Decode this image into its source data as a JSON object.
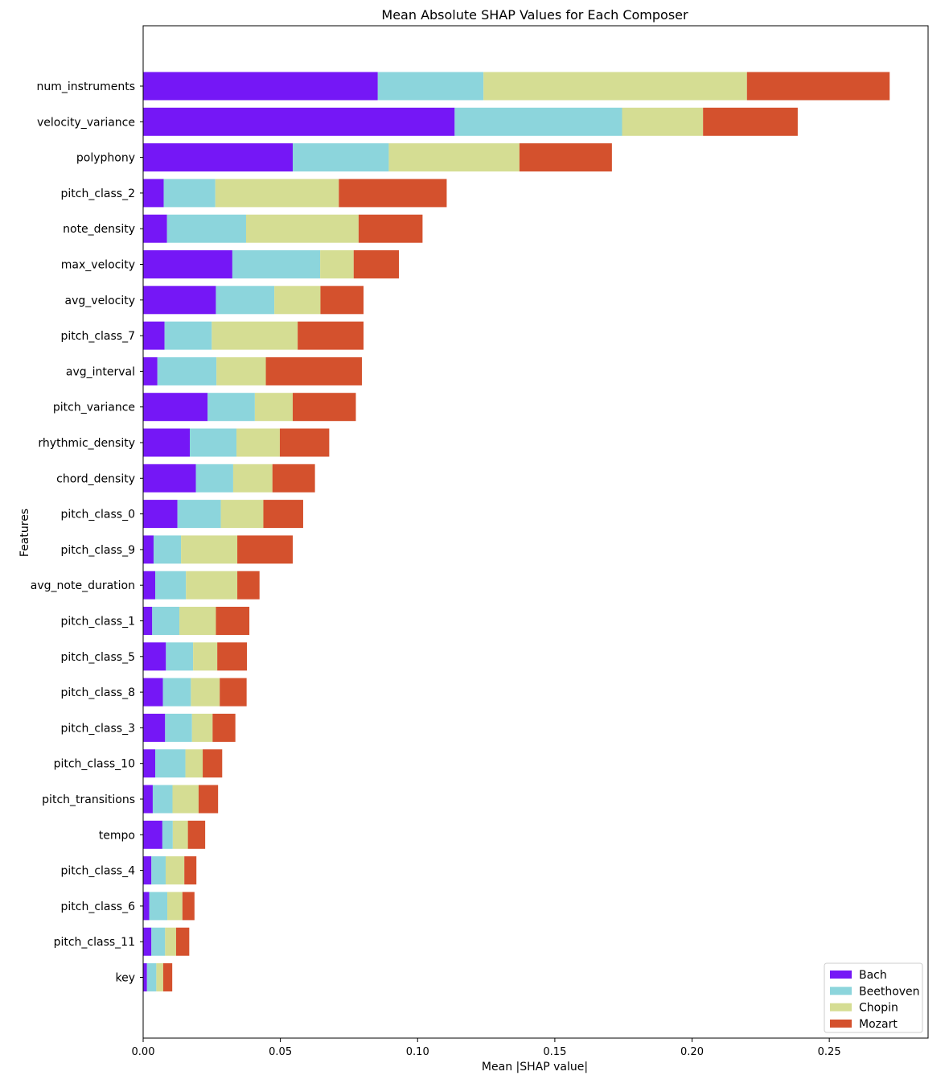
{
  "chart_data": {
    "type": "bar",
    "orientation": "horizontal",
    "stacked": true,
    "title": "Mean Absolute SHAP Values for Each Composer",
    "xlabel": "Mean |SHAP value|",
    "ylabel": "Features",
    "xlim": [
      0,
      0.286
    ],
    "xticks": [
      0.0,
      0.05,
      0.1,
      0.15,
      0.2,
      0.25
    ],
    "xtick_labels": [
      "0.00",
      "0.05",
      "0.10",
      "0.15",
      "0.20",
      "0.25"
    ],
    "grid": false,
    "legend_position": "bottom-right",
    "categories": [
      "num_instruments",
      "velocity_variance",
      "polyphony",
      "pitch_class_2",
      "note_density",
      "max_velocity",
      "avg_velocity",
      "pitch_class_7",
      "avg_interval",
      "pitch_variance",
      "rhythmic_density",
      "chord_density",
      "pitch_class_0",
      "pitch_class_9",
      "avg_note_duration",
      "pitch_class_1",
      "pitch_class_5",
      "pitch_class_8",
      "pitch_class_3",
      "pitch_class_10",
      "pitch_transitions",
      "tempo",
      "pitch_class_4",
      "pitch_class_6",
      "pitch_class_11",
      "key"
    ],
    "series": [
      {
        "name": "Bach",
        "color": "#7517f6",
        "values": [
          0.0855,
          0.1135,
          0.0545,
          0.0075,
          0.0087,
          0.0325,
          0.0265,
          0.0078,
          0.0052,
          0.0235,
          0.017,
          0.0192,
          0.0125,
          0.0038,
          0.0044,
          0.0033,
          0.0083,
          0.0072,
          0.008,
          0.0044,
          0.0035,
          0.007,
          0.003,
          0.0022,
          0.003,
          0.0014
        ]
      },
      {
        "name": "Beethoven",
        "color": "#8cd5dc",
        "values": [
          0.0385,
          0.061,
          0.035,
          0.0188,
          0.0288,
          0.032,
          0.0213,
          0.0172,
          0.0215,
          0.0172,
          0.017,
          0.0136,
          0.0158,
          0.01,
          0.0112,
          0.0099,
          0.0099,
          0.0102,
          0.0098,
          0.011,
          0.0072,
          0.0038,
          0.0052,
          0.0066,
          0.005,
          0.0034
        ]
      },
      {
        "name": "Chopin",
        "color": "#d5dd93",
        "values": [
          0.096,
          0.0295,
          0.0476,
          0.045,
          0.041,
          0.0122,
          0.0168,
          0.0313,
          0.018,
          0.0138,
          0.0158,
          0.0143,
          0.0155,
          0.0205,
          0.0187,
          0.0133,
          0.0088,
          0.0105,
          0.0075,
          0.0063,
          0.0095,
          0.0055,
          0.0068,
          0.0055,
          0.004,
          0.0025
        ]
      },
      {
        "name": "Mozart",
        "color": "#d4512d",
        "values": [
          0.052,
          0.0345,
          0.0337,
          0.0393,
          0.0233,
          0.0165,
          0.0157,
          0.024,
          0.035,
          0.023,
          0.018,
          0.0155,
          0.0145,
          0.0202,
          0.0081,
          0.0122,
          0.0108,
          0.0098,
          0.0083,
          0.0071,
          0.0071,
          0.0063,
          0.0044,
          0.0044,
          0.0048,
          0.0033
        ]
      }
    ]
  }
}
